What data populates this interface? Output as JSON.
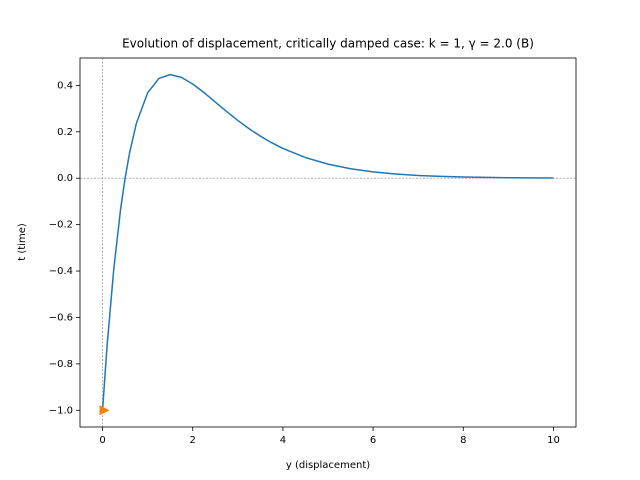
{
  "chart_data": {
    "type": "line",
    "title": "Evolution of displacement, critically damped case: k = 1, γ = 2.0 (B)",
    "xlabel": "y (displacement)",
    "ylabel": "t (time)",
    "series": [
      {
        "color": "#1f77b4",
        "x": [
          0,
          0.1,
          0.25,
          0.4,
          0.5,
          0.6,
          0.75,
          1,
          1.25,
          1.5,
          1.75,
          2,
          2.25,
          2.5,
          2.75,
          3,
          3.25,
          3.5,
          3.75,
          4,
          4.5,
          5,
          5.5,
          6,
          6.5,
          7,
          7.5,
          8,
          9,
          10
        ],
        "values": [
          -1,
          -0.7239,
          -0.3894,
          -0.1341,
          0,
          0.1098,
          0.2362,
          0.3679,
          0.4298,
          0.4463,
          0.4344,
          0.406,
          0.3689,
          0.3283,
          0.2877,
          0.2489,
          0.2133,
          0.1812,
          0.1529,
          0.1282,
          0.0889,
          0.0606,
          0.0409,
          0.0273,
          0.018,
          0.0119,
          0.0077,
          0.005,
          0.0021,
          0.0009
        ]
      },
      {
        "color": "#ff7f0e",
        "marker": "triangle-right",
        "x": [
          0
        ],
        "values": [
          -1
        ]
      }
    ],
    "reference_lines": {
      "x": 0,
      "y": 0
    },
    "xlim": [
      -0.5,
      10.5
    ],
    "ylim": [
      -1.072,
      0.518
    ],
    "xticks": [
      0,
      2,
      4,
      6,
      8,
      10
    ],
    "yticks": [
      {
        "value": -1.0,
        "label": "−1.0"
      },
      {
        "value": -0.8,
        "label": "−0.8"
      },
      {
        "value": -0.6,
        "label": "−0.6"
      },
      {
        "value": -0.4,
        "label": "−0.4"
      },
      {
        "value": -0.2,
        "label": "−0.2"
      },
      {
        "value": 0.0,
        "label": "0.0"
      },
      {
        "value": 0.2,
        "label": "0.2"
      },
      {
        "value": 0.4,
        "label": "0.4"
      }
    ]
  }
}
